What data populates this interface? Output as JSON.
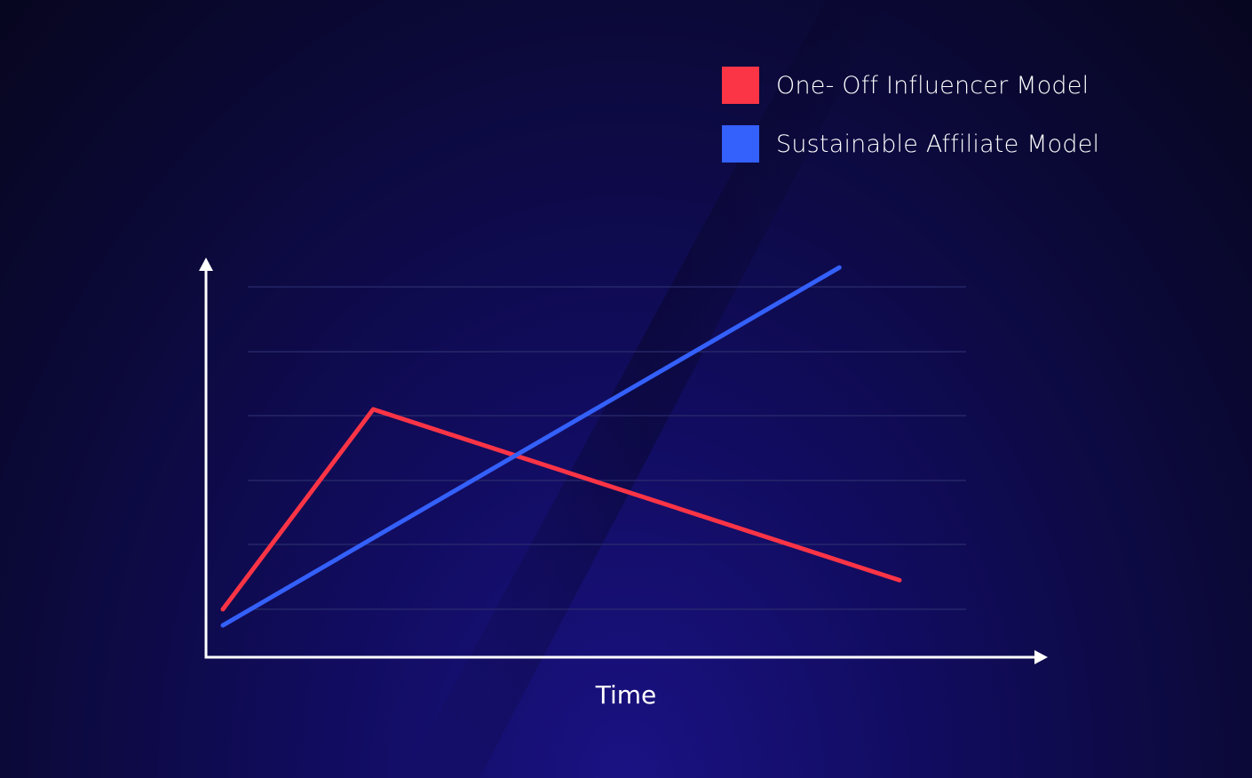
{
  "chart_data": {
    "type": "line",
    "title": "",
    "xlabel": "Time",
    "ylabel": "",
    "x": [
      0,
      1,
      2,
      3,
      4
    ],
    "xlim": [
      0,
      4.4
    ],
    "ylim": [
      0,
      6
    ],
    "grid": true,
    "legend_position": "top-right",
    "series": [
      {
        "name": "One- Off Influencer Model",
        "color": "#fb3446",
        "points": [
          [
            0,
            0
          ],
          [
            1,
            3.1
          ],
          [
            4.5,
            0.45
          ]
        ]
      },
      {
        "name": "Sustainable Affiliate Model",
        "color": "#3460fb",
        "points": [
          [
            0,
            -0.25
          ],
          [
            4.1,
            5.3
          ]
        ]
      }
    ]
  }
}
